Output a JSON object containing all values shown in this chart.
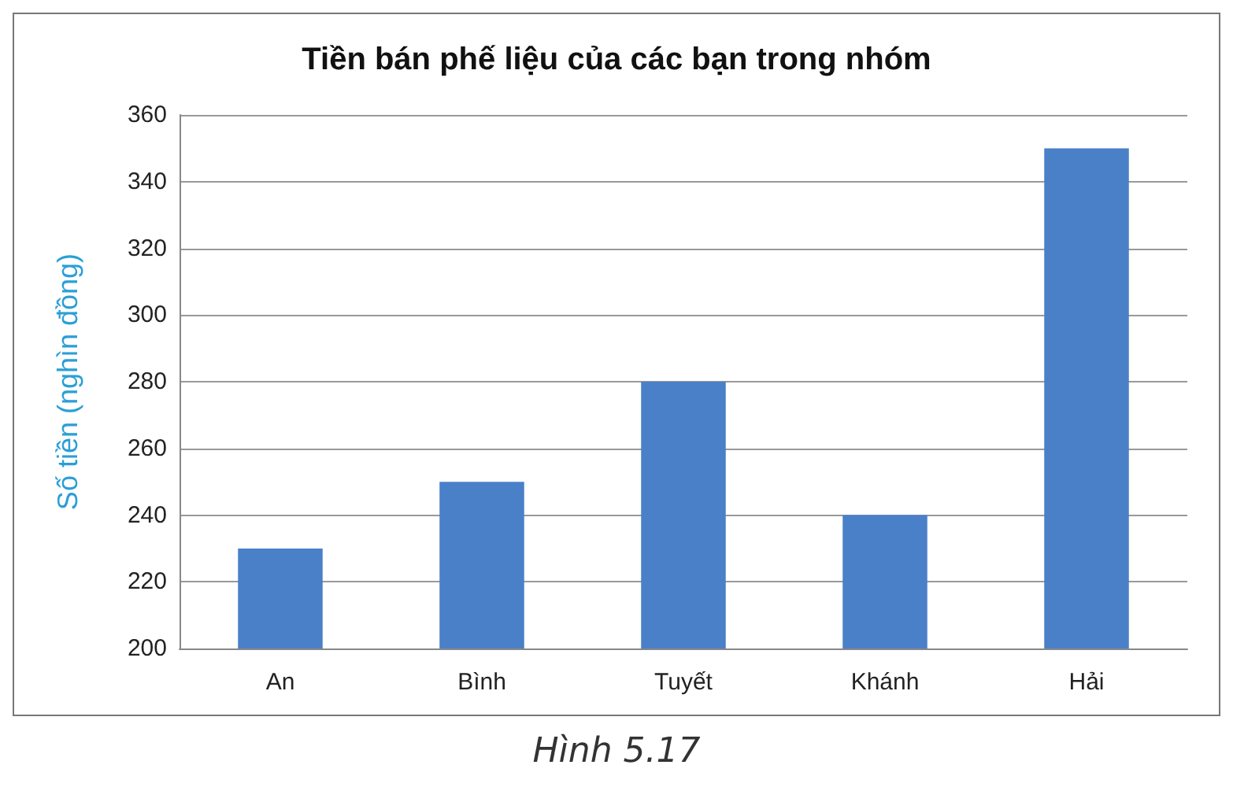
{
  "chart_data": {
    "type": "bar",
    "title": "Tiền bán phế liệu của các bạn trong nhóm",
    "ylabel": "Số tiền (nghìn đồng)",
    "categories": [
      "An",
      "Bình",
      "Tuyết",
      "Khánh",
      "Hải"
    ],
    "values": [
      230,
      250,
      280,
      240,
      350
    ],
    "color": "#4a80c8",
    "ylim": [
      200,
      360
    ],
    "yticks": [
      200,
      220,
      240,
      260,
      280,
      300,
      320,
      340,
      360
    ],
    "grid": "y",
    "annotations": [
      "Hình 5.17"
    ]
  }
}
